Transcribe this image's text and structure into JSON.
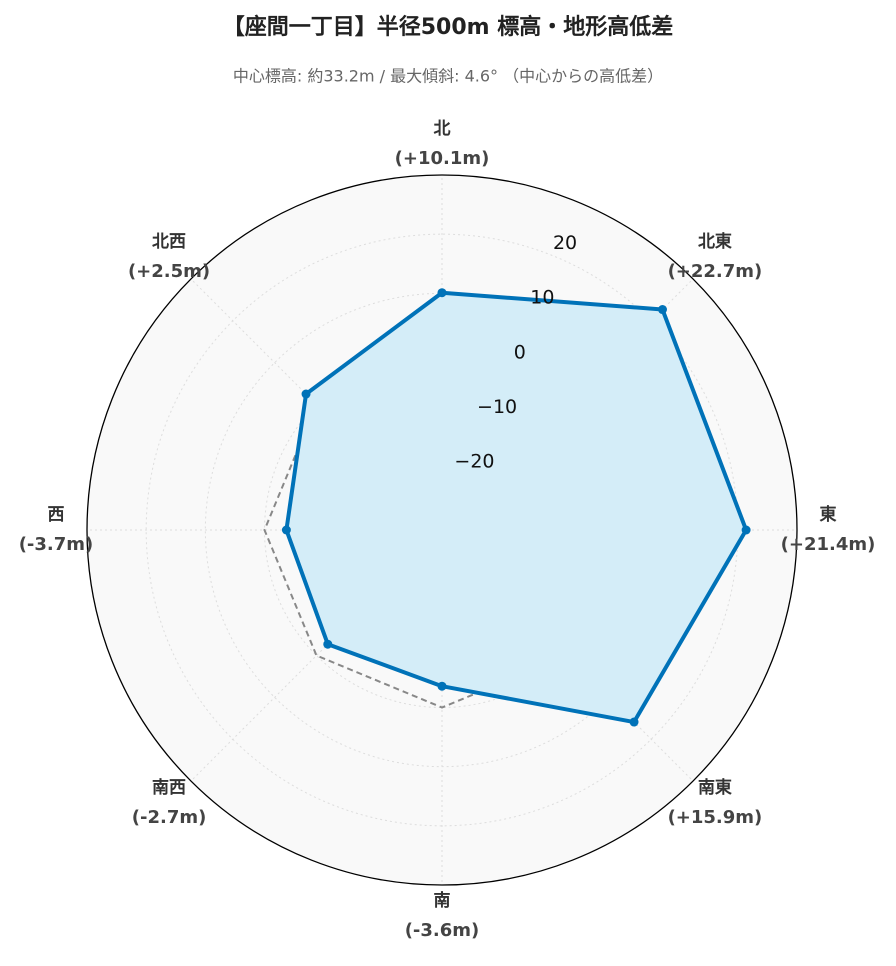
{
  "chart_data": {
    "type": "radar",
    "title": "【座間一丁目】半径500m 標高・地形高低差",
    "subtitle": "中心標高: 約33.2m / 最大傾斜: 4.6° （中心からの高低差）",
    "categories": [
      "北",
      "北東",
      "東",
      "南東",
      "南",
      "南西",
      "西",
      "北西"
    ],
    "series": [
      {
        "color": "#0072b8",
        "fill": "#d4edf8",
        "values": [
          10.1,
          22.7,
          21.4,
          15.9,
          -3.6,
          -2.7,
          -3.7,
          2.5
        ],
        "value_labels": [
          "(+10.1m)",
          "(+22.7m)",
          "(+21.4m)",
          "(+15.9m)",
          "(-3.6m)",
          "(-2.7m)",
          "(-3.7m)",
          "(+2.5m)"
        ]
      }
    ],
    "reference": {
      "value": 0,
      "color": "#888888"
    },
    "ylim": [
      -30,
      30
    ],
    "yticks": [
      {
        "value": -20,
        "label": "−20"
      },
      {
        "value": -10,
        "label": "−10"
      },
      0,
      10,
      20
    ],
    "grid": true
  }
}
